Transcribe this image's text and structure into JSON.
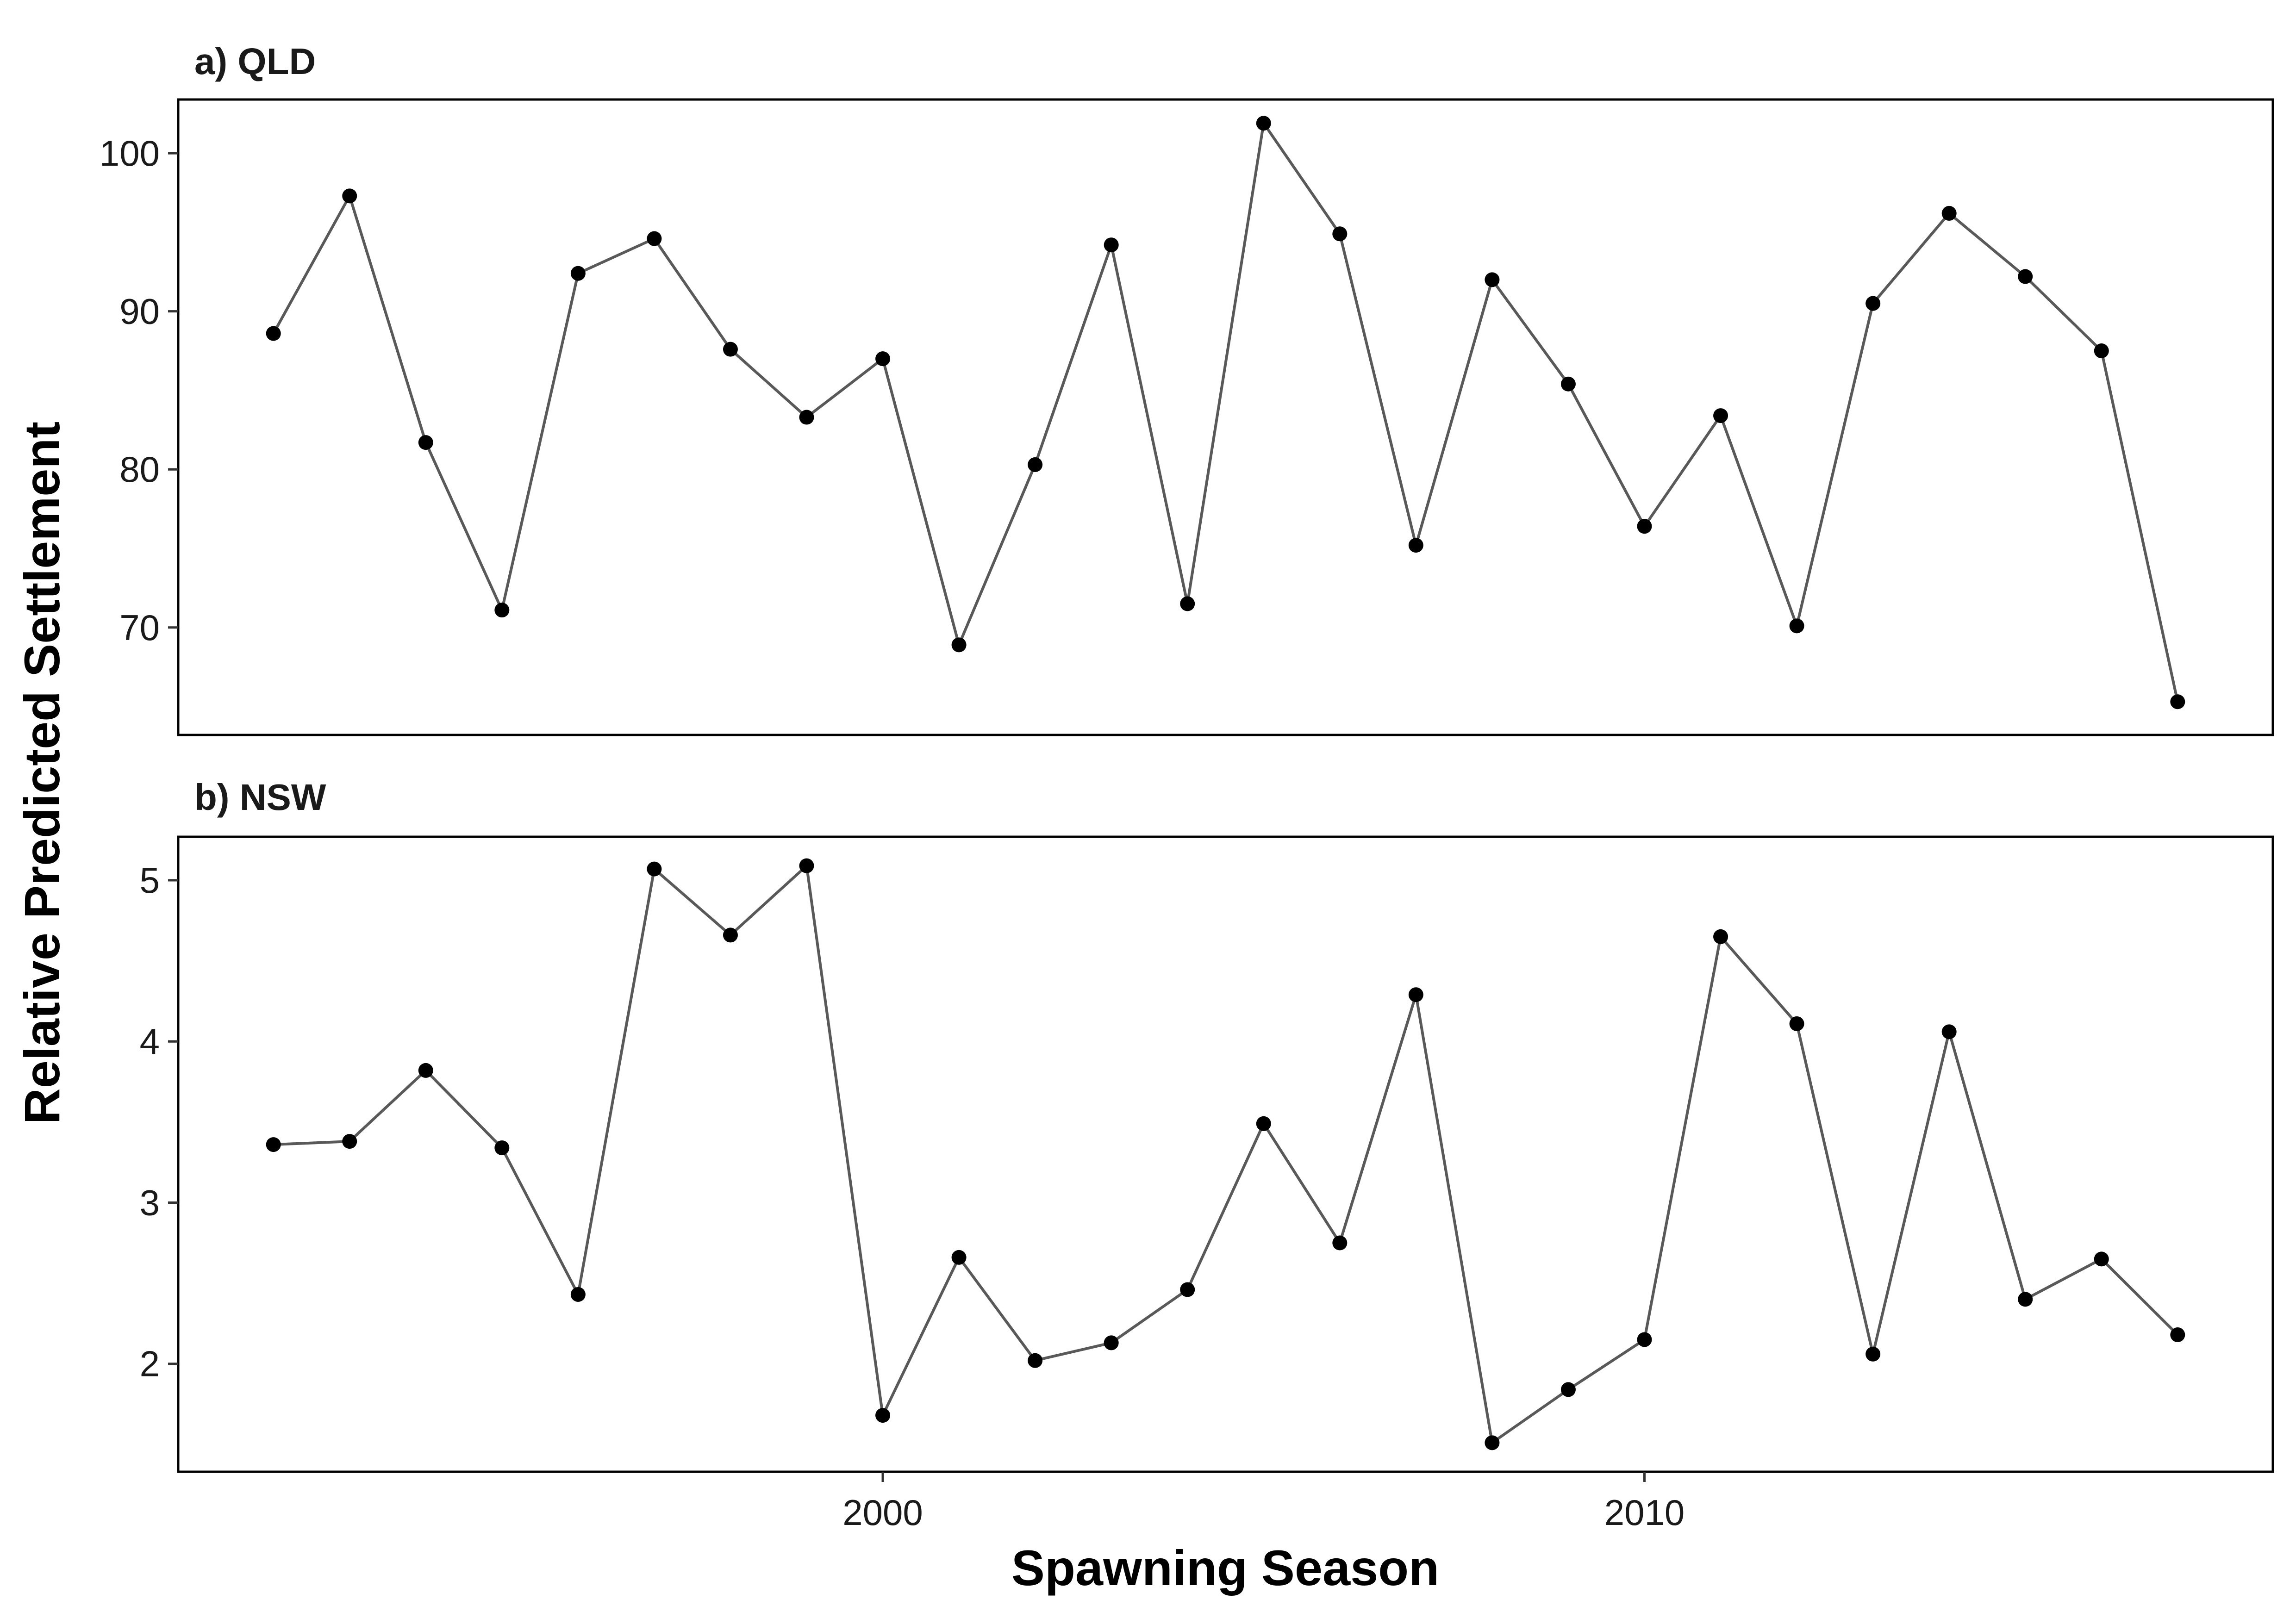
{
  "chart_data": {
    "type": "line",
    "xlabel": "Spawning Season",
    "ylabel": "Relative Predicted Settlement",
    "xlim": [
      1990.75,
      2018.25
    ],
    "x_ticks": [
      2000,
      2010
    ],
    "x": [
      1992,
      1993,
      1994,
      1995,
      1996,
      1997,
      1998,
      1999,
      2000,
      2001,
      2002,
      2003,
      2004,
      2005,
      2006,
      2007,
      2008,
      2009,
      2010,
      2011,
      2012,
      2013,
      2014,
      2015,
      2016,
      2017
    ],
    "panels": [
      {
        "title": "a) QLD",
        "ylim": [
          63.2,
          103.4
        ],
        "y_ticks": [
          70,
          80,
          90,
          100
        ],
        "values": [
          88.6,
          97.3,
          81.7,
          71.1,
          92.4,
          94.6,
          87.6,
          83.3,
          87.0,
          68.9,
          80.3,
          94.2,
          71.5,
          101.9,
          94.9,
          75.2,
          92.0,
          85.4,
          76.4,
          83.4,
          70.1,
          90.5,
          96.2,
          92.2,
          87.5,
          65.3
        ]
      },
      {
        "title": "b) NSW",
        "ylim": [
          1.33,
          5.27
        ],
        "y_ticks": [
          2,
          3,
          4,
          5
        ],
        "values": [
          3.36,
          3.38,
          3.82,
          3.34,
          2.43,
          5.07,
          4.66,
          5.09,
          1.68,
          2.66,
          2.02,
          2.13,
          2.46,
          3.49,
          2.75,
          4.29,
          1.51,
          1.84,
          2.15,
          4.65,
          4.11,
          2.06,
          4.06,
          2.4,
          2.65,
          2.18
        ]
      }
    ],
    "grid": false,
    "colors": {
      "line": "#595959",
      "point": "#000000",
      "frame": "#000000"
    }
  }
}
